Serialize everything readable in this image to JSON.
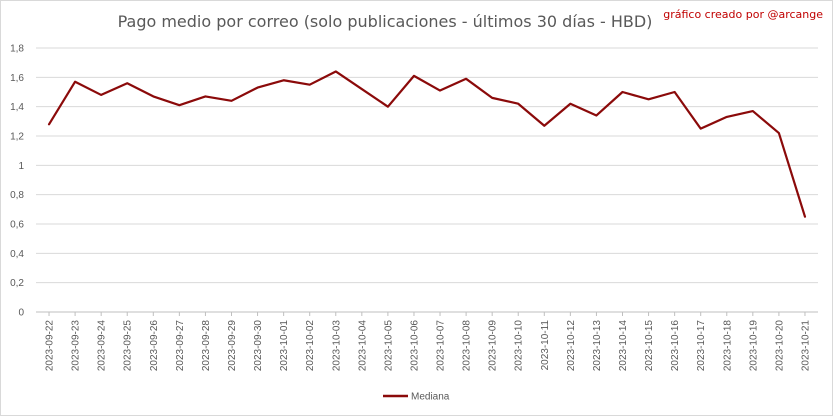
{
  "chart_data": {
    "type": "line",
    "title": "Pago medio por correo (solo publicaciones - últimos 30 días - HBD)",
    "credit": "gráfico creado por @arcange",
    "ylim": [
      0,
      1.8
    ],
    "y_ticks": [
      "0",
      "0,2",
      "0,4",
      "0,6",
      "0,8",
      "1",
      "1,2",
      "1,4",
      "1,6",
      "1,8"
    ],
    "grid": true,
    "legend_position": "bottom",
    "categories": [
      "2023-09-22",
      "2023-09-23",
      "2023-09-24",
      "2023-09-25",
      "2023-09-26",
      "2023-09-27",
      "2023-09-28",
      "2023-09-29",
      "2023-09-30",
      "2023-10-01",
      "2023-10-02",
      "2023-10-03",
      "2023-10-04",
      "2023-10-05",
      "2023-10-06",
      "2023-10-07",
      "2023-10-08",
      "2023-10-09",
      "2023-10-10",
      "2023-10-11",
      "2023-10-12",
      "2023-10-13",
      "2023-10-14",
      "2023-10-15",
      "2023-10-16",
      "2023-10-17",
      "2023-10-18",
      "2023-10-19",
      "2023-10-20",
      "2023-10-21"
    ],
    "series": [
      {
        "name": "Mediana",
        "color": "#8b0a0a",
        "values": [
          1.28,
          1.57,
          1.48,
          1.56,
          1.47,
          1.41,
          1.47,
          1.44,
          1.53,
          1.58,
          1.55,
          1.64,
          1.52,
          1.4,
          1.61,
          1.51,
          1.59,
          1.46,
          1.42,
          1.27,
          1.42,
          1.34,
          1.5,
          1.45,
          1.5,
          1.25,
          1.33,
          1.37,
          1.22,
          0.65
        ]
      }
    ]
  }
}
